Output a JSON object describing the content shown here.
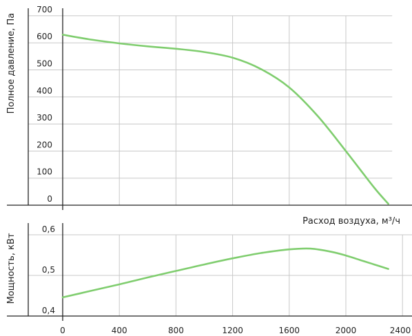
{
  "chart_data": [
    {
      "type": "line",
      "ylabel": "Полное давление, Па",
      "xlabel": "Расход воздуха, м³/ч",
      "xlim": [
        0,
        2400
      ],
      "ylim": [
        0,
        700
      ],
      "y_ticks": [
        0,
        100,
        200,
        300,
        400,
        500,
        600,
        700
      ],
      "y_tick_labels": [
        "0",
        "100",
        "200",
        "300",
        "400",
        "500",
        "600",
        "700"
      ],
      "grid": true,
      "series": [
        {
          "color": "#7fcd6e",
          "x": [
            0,
            200,
            400,
            600,
            800,
            1000,
            1200,
            1400,
            1600,
            1800,
            2000,
            2200,
            2300
          ],
          "y": [
            630,
            612,
            598,
            587,
            578,
            566,
            545,
            503,
            435,
            330,
            200,
            65,
            5
          ]
        }
      ]
    },
    {
      "type": "line",
      "ylabel": "Мощность, кВт",
      "xlim": [
        0,
        2400
      ],
      "ylim": [
        0.4,
        0.6
      ],
      "y_ticks": [
        0.4,
        0.5,
        0.6
      ],
      "y_tick_labels": [
        "0,4",
        "0,5",
        "0,6"
      ],
      "x_ticks": [
        0,
        400,
        800,
        1200,
        1600,
        2000,
        2400
      ],
      "x_tick_labels": [
        "0",
        "400",
        "800",
        "1200",
        "1600",
        "2000",
        "2400"
      ],
      "grid": true,
      "series": [
        {
          "color": "#7fcd6e",
          "x": [
            0,
            200,
            400,
            600,
            800,
            1000,
            1200,
            1400,
            1600,
            1750,
            1900,
            2000,
            2100,
            2200,
            2300
          ],
          "y": [
            0.446,
            0.462,
            0.478,
            0.495,
            0.511,
            0.527,
            0.542,
            0.555,
            0.564,
            0.566,
            0.558,
            0.549,
            0.538,
            0.527,
            0.516
          ]
        }
      ]
    }
  ]
}
